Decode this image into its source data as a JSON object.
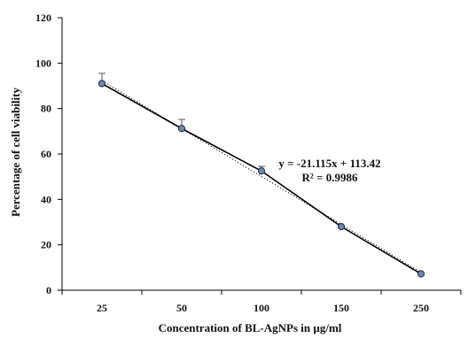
{
  "chart_data": {
    "type": "line",
    "xlabel": "Concentration of BL-AgNPs in µg/ml",
    "ylabel": "Percentage of cell viability",
    "categories": [
      "25",
      "50",
      "100",
      "150",
      "250"
    ],
    "ylim": [
      0,
      120
    ],
    "yticks": [
      0,
      20,
      40,
      60,
      80,
      100,
      120
    ],
    "series": [
      {
        "values": [
          91,
          71.2,
          52.5,
          28,
          7.2
        ],
        "error_up": [
          4.5,
          4.0,
          2.0,
          0,
          0
        ],
        "color": "#000000",
        "marker_color": "#6f86a8"
      }
    ],
    "trendline": {
      "type": "linear",
      "slope": -21.115,
      "intercept": 113.42,
      "style": "dotted",
      "equation_label": "y = -21.115x + 113.42",
      "r2_label": "R² = 0.9986"
    },
    "grid": false,
    "legend": "none"
  }
}
